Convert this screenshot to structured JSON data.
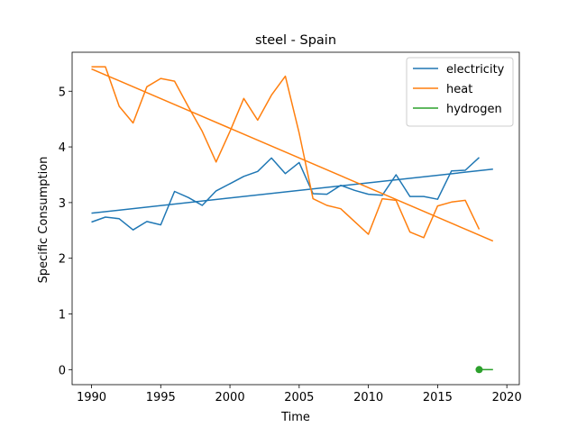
{
  "chart_data": {
    "type": "line",
    "title": "steel - Spain",
    "xlabel": "Time",
    "ylabel": "Specific Consumption",
    "xlim": [
      1988.6,
      2020.9
    ],
    "ylim": [
      -0.27,
      5.7
    ],
    "xticks": [
      1990,
      1995,
      2000,
      2005,
      2010,
      2015,
      2020
    ],
    "yticks": [
      0,
      1,
      2,
      3,
      4,
      5
    ],
    "legend_position": "top-right",
    "grid": false,
    "series": [
      {
        "name": "electricity",
        "color": "#1f77b4",
        "x": [
          1990,
          1991,
          1992,
          1993,
          1994,
          1995,
          1996,
          1997,
          1998,
          1999,
          2000,
          2001,
          2002,
          2003,
          2004,
          2005,
          2006,
          2007,
          2008,
          2009,
          2010,
          2011,
          2012,
          2013,
          2014,
          2015,
          2016,
          2017,
          2018
        ],
        "y": [
          2.65,
          2.74,
          2.71,
          2.51,
          2.66,
          2.6,
          3.2,
          3.09,
          2.95,
          3.21,
          3.34,
          3.47,
          3.56,
          3.8,
          3.52,
          3.72,
          3.16,
          3.15,
          3.31,
          3.22,
          3.15,
          3.13,
          3.5,
          3.11,
          3.11,
          3.06,
          3.57,
          3.58,
          3.81
        ],
        "trend": {
          "x": [
            1990,
            2019
          ],
          "y": [
            2.81,
            3.6
          ]
        }
      },
      {
        "name": "heat",
        "color": "#ff7f0e",
        "x": [
          1990,
          1991,
          1992,
          1993,
          1994,
          1995,
          1996,
          1997,
          1998,
          1999,
          2000,
          2001,
          2002,
          2003,
          2004,
          2005,
          2006,
          2007,
          2008,
          2009,
          2010,
          2011,
          2012,
          2013,
          2014,
          2015,
          2016,
          2017,
          2018
        ],
        "y": [
          5.44,
          5.44,
          4.73,
          4.43,
          5.08,
          5.23,
          5.18,
          4.72,
          4.28,
          3.73,
          4.28,
          4.87,
          4.48,
          4.93,
          5.27,
          4.25,
          3.07,
          2.95,
          2.89,
          2.66,
          2.43,
          3.07,
          3.04,
          2.47,
          2.37,
          2.94,
          3.01,
          3.04,
          2.52
        ],
        "trend": {
          "x": [
            1990,
            2019
          ],
          "y": [
            5.4,
            2.31
          ]
        }
      },
      {
        "name": "hydrogen",
        "color": "#2ca02c",
        "x": [
          2018
        ],
        "y": [
          0.0
        ],
        "trend": {
          "x": [
            2018,
            2019
          ],
          "y": [
            0.0,
            0.0
          ]
        }
      }
    ]
  }
}
